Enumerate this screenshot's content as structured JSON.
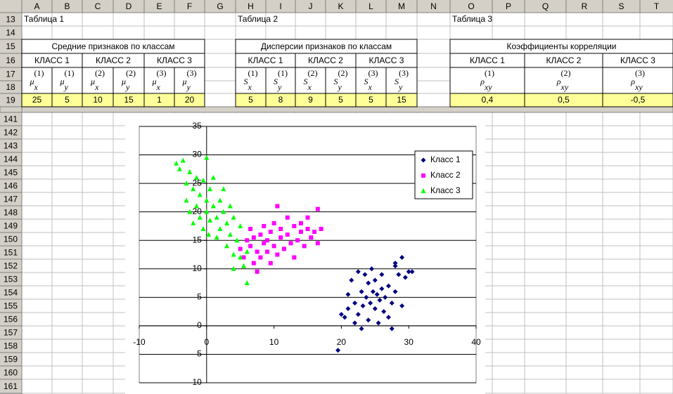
{
  "columns": [
    "A",
    "B",
    "C",
    "D",
    "E",
    "F",
    "G",
    "H",
    "I",
    "J",
    "K",
    "L",
    "M",
    "N",
    "O",
    "P",
    "Q",
    "R",
    "S",
    "T"
  ],
  "rows_top": [
    "13",
    "14",
    "15",
    "16",
    "17",
    "18",
    "19"
  ],
  "rows_bottom": [
    "141",
    "142",
    "143",
    "144",
    "145",
    "146",
    "147",
    "148",
    "149",
    "150",
    "151",
    "152",
    "153",
    "154",
    "155",
    "156",
    "157",
    "158",
    "159",
    "160",
    "161"
  ],
  "tables": [
    {
      "caption": "Таблица 1",
      "title": "Средние признаков по классам",
      "classes": [
        "КЛАСС 1",
        "КЛАСС 2",
        "КЛАСС 3"
      ],
      "symbols": [
        {
          "base": "μ",
          "sub": "x",
          "sup": "(1)"
        },
        {
          "base": "μ",
          "sub": "y",
          "sup": "(1)"
        },
        {
          "base": "μ",
          "sub": "x",
          "sup": "(2)"
        },
        {
          "base": "μ",
          "sub": "y",
          "sup": "(2)"
        },
        {
          "base": "μ",
          "sub": "x",
          "sup": "(3)"
        },
        {
          "base": "μ",
          "sub": "y",
          "sup": "(3)"
        }
      ],
      "values": [
        25,
        5,
        10,
        15,
        1,
        20
      ]
    },
    {
      "caption": "Таблица 2",
      "title": "Дисперсии признаков по классам",
      "classes": [
        "КЛАСС 1",
        "КЛАСС 2",
        "КЛАСС 3"
      ],
      "symbols": [
        {
          "base": "S",
          "sub": "x",
          "sup": "(1)"
        },
        {
          "base": "S",
          "sub": "y",
          "sup": "(1)"
        },
        {
          "base": "S",
          "sub": "x",
          "sup": "(2)"
        },
        {
          "base": "S",
          "sub": "y",
          "sup": "(2)"
        },
        {
          "base": "S",
          "sub": "x",
          "sup": "(3)"
        },
        {
          "base": "S",
          "sub": "y",
          "sup": "(3)"
        }
      ],
      "values": [
        5,
        8,
        9,
        5,
        5,
        15
      ]
    },
    {
      "caption": "Таблица 3",
      "title": "Коэффициенты корреляции",
      "classes": [
        "КЛАСС 1",
        "КЛАСС 2",
        "КЛАСС 3"
      ],
      "symbols": [
        {
          "base": "ρ",
          "sub": "xy",
          "sup": "(1)"
        },
        {
          "base": "ρ",
          "sub": "xy",
          "sup": "(2)"
        },
        {
          "base": "ρ",
          "sub": "xy",
          "sup": "(3)"
        }
      ],
      "values": [
        0.4,
        0.5,
        -0.5
      ],
      "value_labels": [
        "0,4",
        "0,5",
        "-0,5"
      ]
    }
  ],
  "chart_data": {
    "type": "scatter",
    "xlim": [
      -10,
      40
    ],
    "ylim": [
      -10,
      35
    ],
    "xticks": [
      -10,
      0,
      10,
      20,
      30,
      40
    ],
    "yticks": [
      -10,
      -5,
      0,
      5,
      10,
      15,
      20,
      25,
      30,
      35
    ],
    "grid": true,
    "legend": "right",
    "series": [
      {
        "name": "Класс 1",
        "color": "#000080",
        "marker": "diamond",
        "x": [
          19.5,
          20,
          20.5,
          21,
          21,
          21.5,
          22,
          22,
          22.5,
          22.5,
          23,
          23,
          23.2,
          23.5,
          23.7,
          24,
          24,
          24.3,
          24.5,
          24.7,
          25,
          25,
          25.3,
          25.5,
          25.7,
          26,
          26,
          26.3,
          26.5,
          27,
          27,
          27.5,
          28,
          28,
          28.5,
          29,
          29,
          29.5,
          30,
          30.5,
          27.5,
          28
        ],
        "values": [
          -4.3,
          2,
          1.5,
          3,
          5.5,
          8,
          0.5,
          4,
          9.5,
          2,
          6,
          -0.5,
          3.5,
          9,
          5,
          1,
          7.5,
          4,
          10,
          6,
          3,
          8,
          5.5,
          0.5,
          4.5,
          9,
          6.5,
          2.5,
          5,
          7,
          1.5,
          4,
          11,
          6,
          9,
          12,
          3.5,
          8.5,
          9.5,
          9.5,
          -0.5,
          10.5
        ]
      },
      {
        "name": "Класс 2",
        "color": "#ff00ff",
        "marker": "square",
        "x": [
          5,
          5.5,
          6,
          6.5,
          6.5,
          7,
          7,
          7.5,
          7.5,
          8,
          8,
          8.5,
          8.5,
          9,
          9,
          9.5,
          9.5,
          10,
          10,
          10.5,
          10.5,
          11,
          11,
          11.5,
          12,
          12,
          12.5,
          13,
          13,
          13.5,
          14,
          14,
          14.5,
          15,
          15,
          15.5,
          16,
          16.5,
          16.5,
          17
        ],
        "values": [
          13.5,
          12,
          15,
          14,
          17,
          11,
          15.5,
          9.5,
          13,
          16,
          12,
          14.5,
          17.5,
          13,
          15,
          11,
          16.5,
          14,
          18,
          21,
          12.5,
          15.5,
          17,
          13.5,
          16,
          19,
          14.5,
          17.5,
          12,
          15,
          18,
          16.5,
          14,
          17,
          19,
          15.5,
          16.5,
          20.5,
          14.5,
          17
        ]
      },
      {
        "name": "Класс 3",
        "color": "#00ff00",
        "marker": "triangle",
        "x": [
          -4.5,
          -4,
          -3.5,
          -3,
          -3,
          -2.5,
          -2.5,
          -2,
          -2,
          -1.5,
          -1.5,
          -1,
          -1,
          -0.5,
          -0.5,
          0,
          0,
          0,
          0.3,
          0.5,
          0.5,
          1,
          1,
          1.5,
          1.5,
          2,
          2,
          2.5,
          2.5,
          3,
          3,
          3.5,
          3.5,
          4,
          4,
          4.5,
          5,
          5,
          5.5,
          6,
          4,
          6
        ],
        "values": [
          28.5,
          27.5,
          29,
          25,
          22,
          27,
          20,
          24,
          18,
          26,
          21,
          23,
          19,
          25.5,
          17,
          29.5,
          22,
          20,
          16,
          24,
          18.5,
          21,
          26,
          19,
          15.5,
          22,
          17,
          20,
          24,
          18,
          14,
          21,
          16,
          12.5,
          19,
          15,
          17.5,
          12,
          10.5,
          7.5,
          10,
          13
        ]
      }
    ]
  }
}
